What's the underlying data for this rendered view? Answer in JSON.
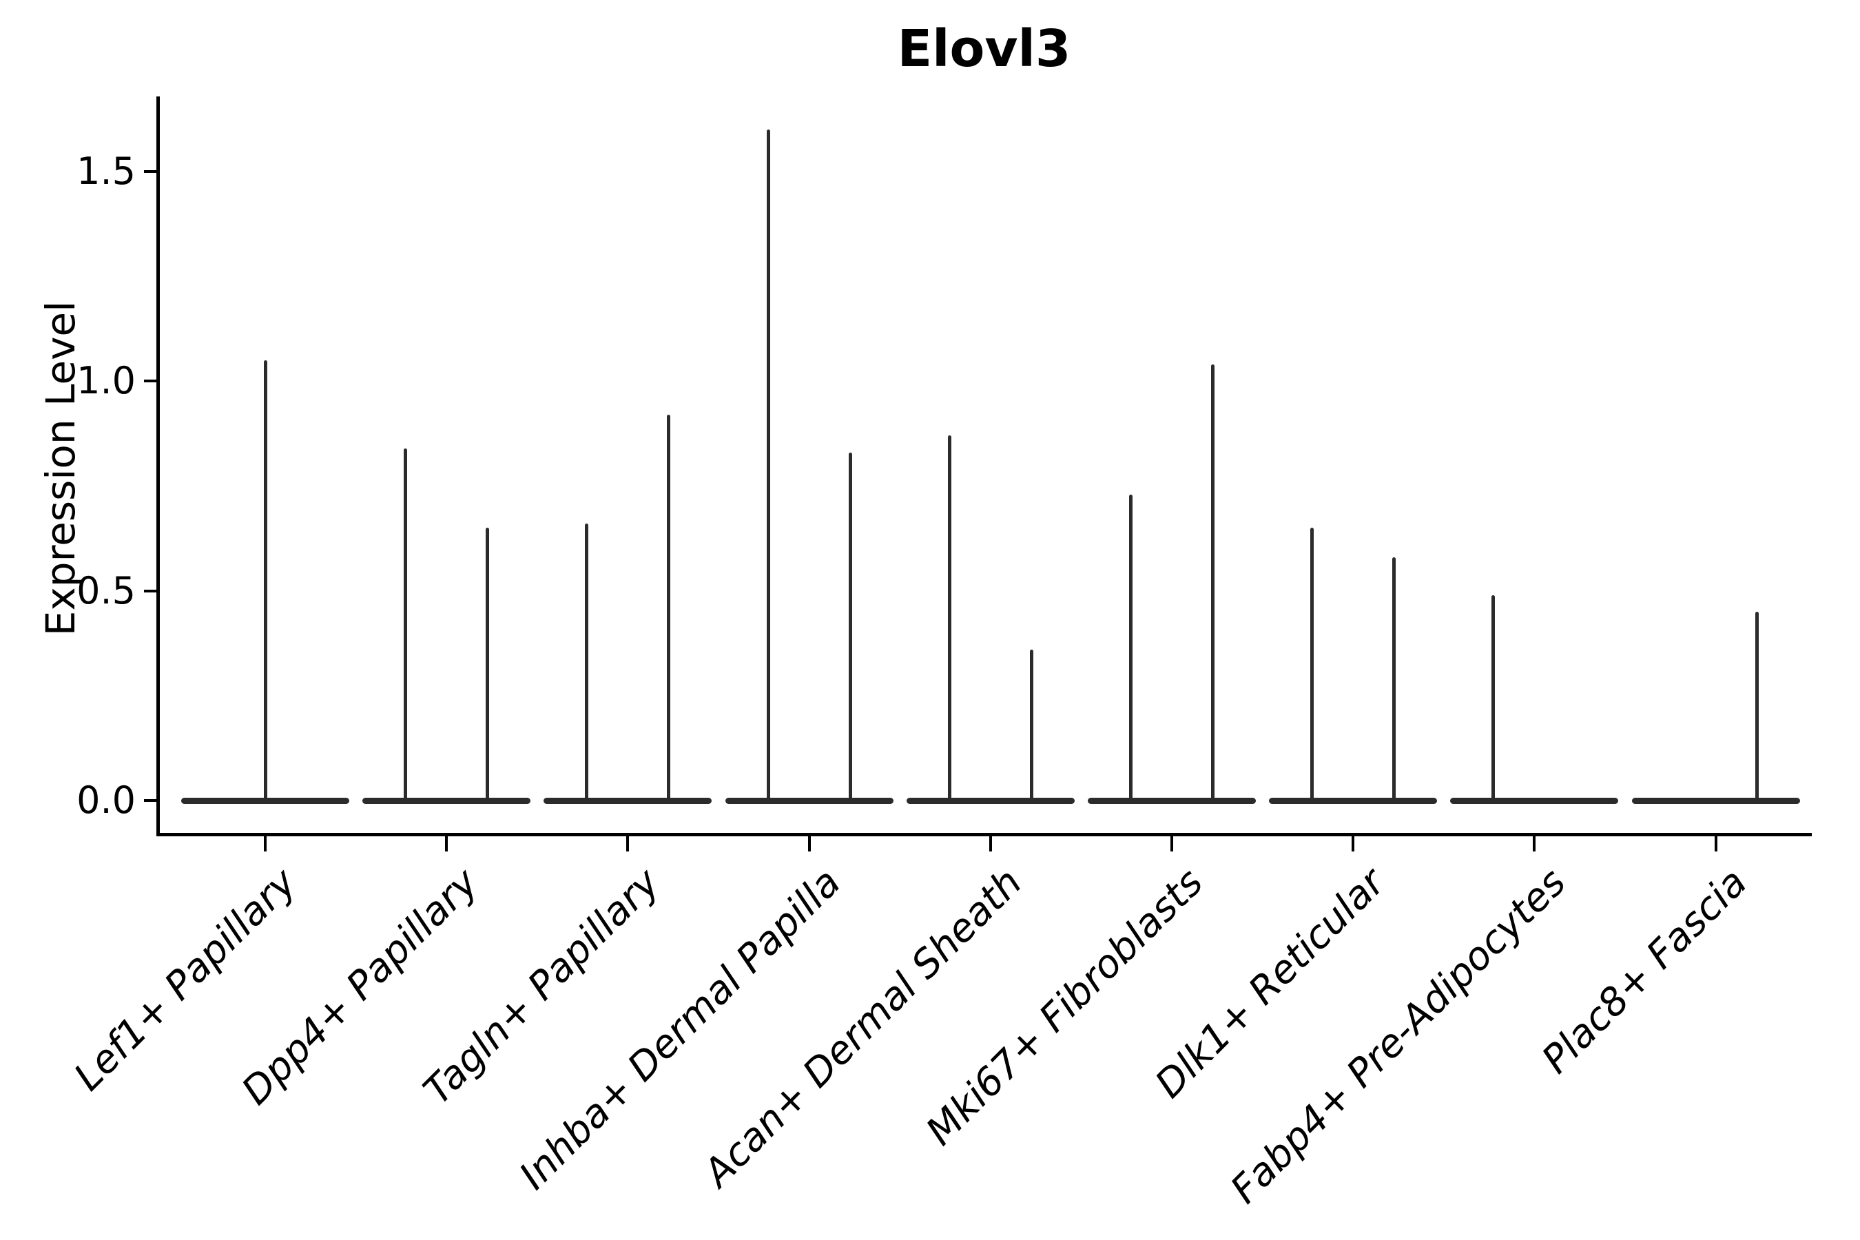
{
  "title": "Elovl3",
  "ylabel": "Expression Level",
  "y_axis": {
    "tick_labels": [
      "0.0",
      "0.5",
      "1.0",
      "1.5"
    ],
    "tick_values": [
      0.0,
      0.5,
      1.0,
      1.5
    ]
  },
  "chart_data": {
    "type": "violin",
    "title": "Elovl3",
    "xlabel": "",
    "ylabel": "Expression Level",
    "ylim": [
      -0.08,
      1.68
    ],
    "grid": false,
    "legend": "none",
    "stroke_color": "#2b2b2b",
    "description": "Thin spike-shaped violins; bulk of distribution collapsed flat at 0, thin tails extending to max expression. Most categories show two sub-violins (left/right halves of the slot); Lef1+ Papillary shows a single centered spike.",
    "categories": [
      "Lef1+ Papillary",
      "Dpp4+ Papillary",
      "Tagln+ Papillary",
      "Inhba+ Dermal Papilla",
      "Acan+ Dermal Sheath",
      "Mki67+ Fibroblasts",
      "Dlk1+ Reticular",
      "Fabp4+ Pre-Adipocytes",
      "Plac8+ Fascia"
    ],
    "violins": [
      {
        "label": "Lef1+ Papillary",
        "spikes": [
          {
            "pos": "center",
            "max": 1.05
          }
        ]
      },
      {
        "label": "Dpp4+ Papillary",
        "spikes": [
          {
            "pos": "left",
            "max": 0.84
          },
          {
            "pos": "right",
            "max": 0.65
          }
        ]
      },
      {
        "label": "Tagln+ Papillary",
        "spikes": [
          {
            "pos": "left",
            "max": 0.66
          },
          {
            "pos": "right",
            "max": 0.92
          }
        ]
      },
      {
        "label": "Inhba+ Dermal Papilla",
        "spikes": [
          {
            "pos": "left",
            "max": 1.6
          },
          {
            "pos": "right",
            "max": 0.83
          }
        ]
      },
      {
        "label": "Acan+ Dermal Sheath",
        "spikes": [
          {
            "pos": "left",
            "max": 0.87
          },
          {
            "pos": "right",
            "max": 0.36
          }
        ]
      },
      {
        "label": "Mki67+ Fibroblasts",
        "spikes": [
          {
            "pos": "left",
            "max": 0.73
          },
          {
            "pos": "right",
            "max": 1.04
          }
        ]
      },
      {
        "label": "Dlk1+ Reticular",
        "spikes": [
          {
            "pos": "left",
            "max": 0.65
          },
          {
            "pos": "right",
            "max": 0.58
          }
        ]
      },
      {
        "label": "Fabp4+ Pre-Adipocytes",
        "spikes": [
          {
            "pos": "left",
            "max": 0.49
          }
        ]
      },
      {
        "label": "Plac8+ Fascia",
        "spikes": [
          {
            "pos": "right",
            "max": 0.45
          }
        ]
      }
    ],
    "baseline_value": 0.0
  }
}
